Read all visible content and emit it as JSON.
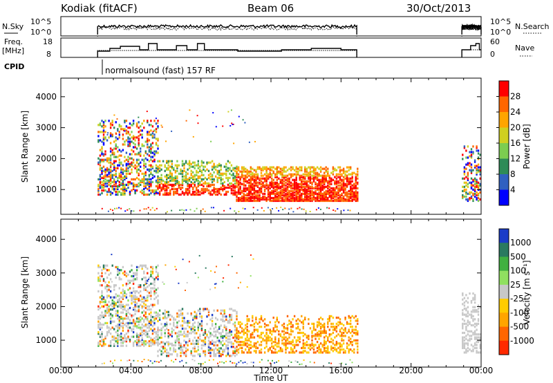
{
  "header": {
    "station": "Kodiak (fitACF)",
    "beam": "Beam 06",
    "date": "30/Oct/2013"
  },
  "nsky_panel": {
    "left_label": "N.Sky",
    "left_ticks": [
      "10^5",
      "10^0"
    ],
    "right_ticks": [
      "10^5",
      "10^0"
    ],
    "right_label": "N.Search"
  },
  "freq_panel": {
    "left_label_1": "Freq.",
    "left_label_2": "[MHz]",
    "left_ticks": [
      "18",
      "8"
    ],
    "right_ticks": [
      "60",
      "0"
    ],
    "right_label": "Nave"
  },
  "cpid": {
    "label": "CPID",
    "mode": "normalsound (fast) 157 RF"
  },
  "colors": {
    "power_scale": [
      "#0000ff",
      "#3060c0",
      "#2e8b57",
      "#7ccd50",
      "#d0d020",
      "#ffa500",
      "#ff6600",
      "#ff0000"
    ],
    "velocity_scale": [
      "#1a3cc8",
      "#2a7a60",
      "#40b040",
      "#90e060",
      "#c8c8c8",
      "#ffcc00",
      "#ffa500",
      "#ff6600",
      "#ff2a00"
    ]
  },
  "chart_data": [
    {
      "type": "heatmap",
      "title": "",
      "ylabel": "Slant Range [km]",
      "xlabel": "",
      "x_ticks": [
        "00:00",
        "04:00",
        "08:00",
        "12:00",
        "16:00",
        "20:00",
        "00:00"
      ],
      "y_ticks": [
        "1000",
        "2000",
        "3000",
        "4000"
      ],
      "ylim": [
        200,
        4600
      ],
      "xlim_hours": [
        0,
        24
      ],
      "colorbar": {
        "label": "Power [dB]",
        "ticks": [
          "4",
          "8",
          "12",
          "16",
          "20",
          "24",
          "28"
        ],
        "range": [
          0,
          32
        ]
      },
      "echo_regions": [
        {
          "t0": 2.1,
          "t1": 5.5,
          "r0": 800,
          "r1": 3200,
          "level": "mixed"
        },
        {
          "t0": 5.5,
          "t1": 10.0,
          "r0": 800,
          "r1": 1900,
          "level": "medium"
        },
        {
          "t0": 10.0,
          "t1": 16.9,
          "r0": 600,
          "r1": 1700,
          "level": "high"
        },
        {
          "t0": 22.9,
          "t1": 24.0,
          "r0": 600,
          "r1": 2400,
          "level": "mixed"
        }
      ]
    },
    {
      "type": "heatmap",
      "title": "",
      "ylabel": "Slant Range [km]",
      "xlabel": "Time UT",
      "x_ticks": [
        "00:00",
        "04:00",
        "08:00",
        "12:00",
        "16:00",
        "20:00",
        "00:00"
      ],
      "y_ticks": [
        "1000",
        "2000",
        "3000",
        "4000"
      ],
      "ylim": [
        200,
        4600
      ],
      "xlim_hours": [
        0,
        24
      ],
      "colorbar": {
        "label": "Velocity [m s^-1]",
        "ticks": [
          "1000",
          "500",
          "100",
          "25",
          "-25",
          "-100",
          "-500",
          "-1000"
        ],
        "range": [
          -1000,
          1000
        ]
      },
      "echo_regions": [
        {
          "t0": 2.1,
          "t1": 5.5,
          "r0": 800,
          "r1": 3200,
          "level": "mixed"
        },
        {
          "t0": 5.5,
          "t1": 10.0,
          "r0": 500,
          "r1": 1900,
          "level": "mixed"
        },
        {
          "t0": 10.0,
          "t1": 16.9,
          "r0": 600,
          "r1": 1700,
          "level": "negative"
        },
        {
          "t0": 22.9,
          "t1": 24.0,
          "r0": 600,
          "r1": 2400,
          "level": "ground"
        }
      ]
    }
  ]
}
